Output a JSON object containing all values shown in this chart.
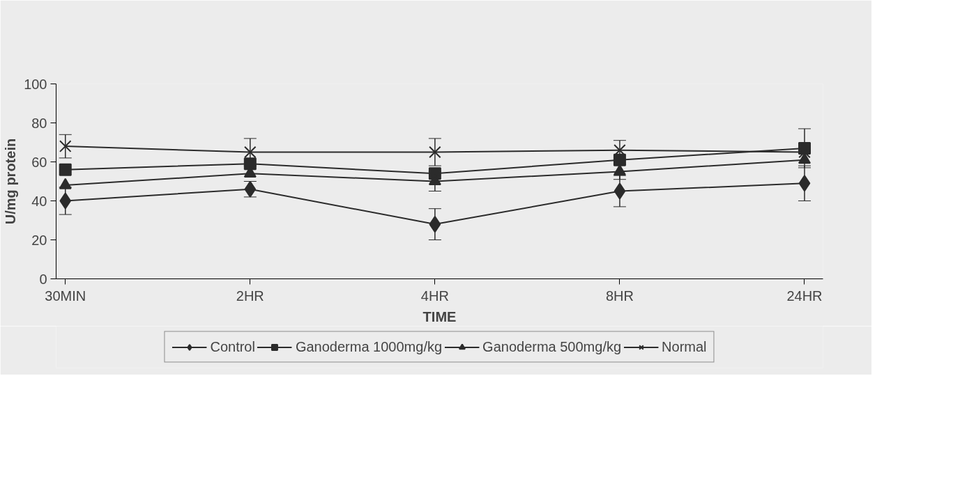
{
  "chart_data": {
    "type": "line",
    "xlabel": "TIME",
    "ylabel": "U/mg protein",
    "categories": [
      "30MIN",
      "2HR",
      "4HR",
      "8HR",
      "24HR"
    ],
    "ylim": [
      0,
      100
    ],
    "yticks": [
      0,
      20,
      40,
      60,
      80,
      100
    ],
    "grid": false,
    "legend": "bottom",
    "line_style": "solid",
    "series": [
      {
        "name": "Control",
        "color": "#2b2b2b",
        "marker": "diamond",
        "values": [
          40,
          46,
          28,
          45,
          49
        ],
        "errors": [
          7,
          4,
          8,
          8,
          9
        ]
      },
      {
        "name": "Ganoderma 1000mg/kg",
        "color": "#2b2b2b",
        "marker": "square",
        "values": [
          56,
          59,
          54,
          61,
          67
        ],
        "errors": [
          null,
          null,
          null,
          null,
          10
        ]
      },
      {
        "name": "Ganoderma 500mg/kg",
        "color": "#2b2b2b",
        "marker": "triangle",
        "values": [
          48,
          54,
          50,
          55,
          61
        ],
        "errors": [
          null,
          null,
          5,
          4,
          null
        ]
      },
      {
        "name": "Normal",
        "color": "#2b2b2b",
        "marker": "x",
        "values": [
          68,
          65,
          65,
          66,
          65
        ],
        "errors": [
          6,
          7,
          7,
          5,
          null
        ]
      }
    ]
  }
}
